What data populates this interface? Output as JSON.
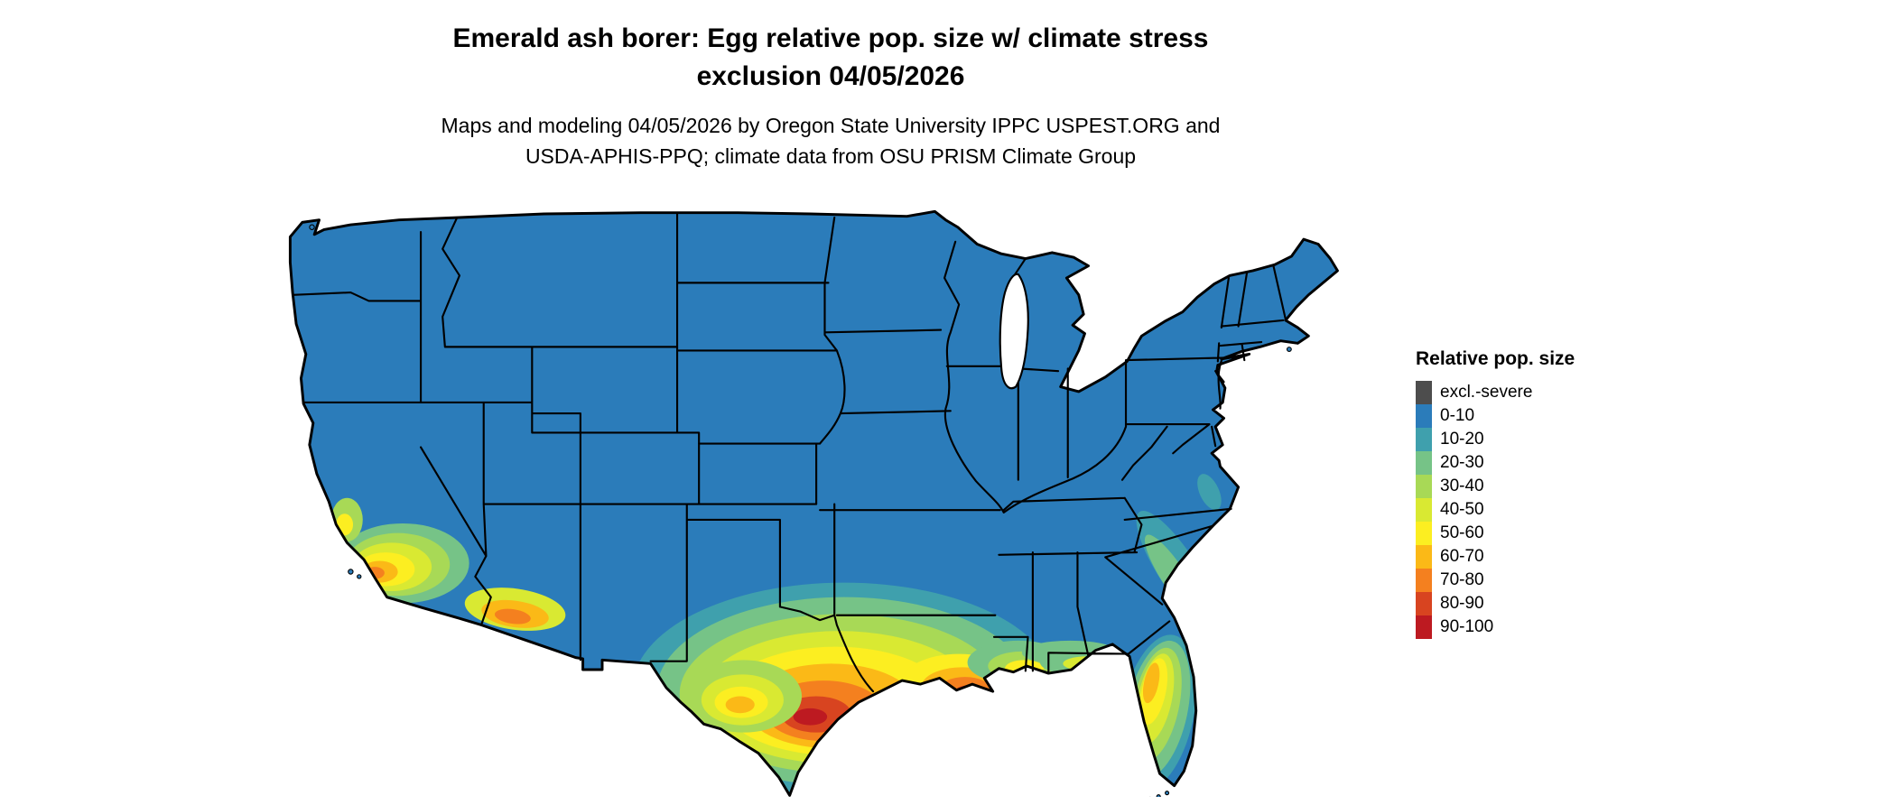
{
  "title": {
    "line1": "Emerald ash borer: Egg relative pop. size w/ climate stress",
    "line2": "exclusion 04/05/2026"
  },
  "subtitle": {
    "line1": "Maps and modeling 04/05/2026 by Oregon State University IPPC USPEST.ORG and",
    "line2": "USDA-APHIS-PPQ; climate data from OSU PRISM Climate Group"
  },
  "legend": {
    "title": "Relative pop. size",
    "items": [
      {
        "label": "excl.-severe",
        "color": "#4d4d4d"
      },
      {
        "label": "0-10",
        "color": "#2b7cba"
      },
      {
        "label": "10-20",
        "color": "#3fa0ad"
      },
      {
        "label": "20-30",
        "color": "#76c387"
      },
      {
        "label": "30-40",
        "color": "#a8d956"
      },
      {
        "label": "40-50",
        "color": "#d9e932"
      },
      {
        "label": "50-60",
        "color": "#fcee21"
      },
      {
        "label": "60-70",
        "color": "#fbb917"
      },
      {
        "label": "70-80",
        "color": "#f4801f"
      },
      {
        "label": "80-90",
        "color": "#d84420"
      },
      {
        "label": "90-100",
        "color": "#bd1a21"
      }
    ]
  },
  "map": {
    "name": "Contiguous United States",
    "base_value": "0-10",
    "border_color": "#000000",
    "water_color": "#ffffff",
    "hotspots": [
      {
        "region": "Southern California coast",
        "range": "20-80"
      },
      {
        "region": "Southwestern Arizona / lower Colorado River",
        "range": "40-80"
      },
      {
        "region": "Southern and central Texas / Rio Grande valley",
        "range": "20-100"
      },
      {
        "region": "Louisiana Gulf Coast",
        "range": "50-90"
      },
      {
        "region": "Mississippi / Alabama Gulf Coast",
        "range": "20-60"
      },
      {
        "region": "Florida peninsula",
        "range": "10-70"
      },
      {
        "region": "Southeastern coastal plain (Georgia / Carolinas)",
        "range": "10-30"
      }
    ]
  }
}
